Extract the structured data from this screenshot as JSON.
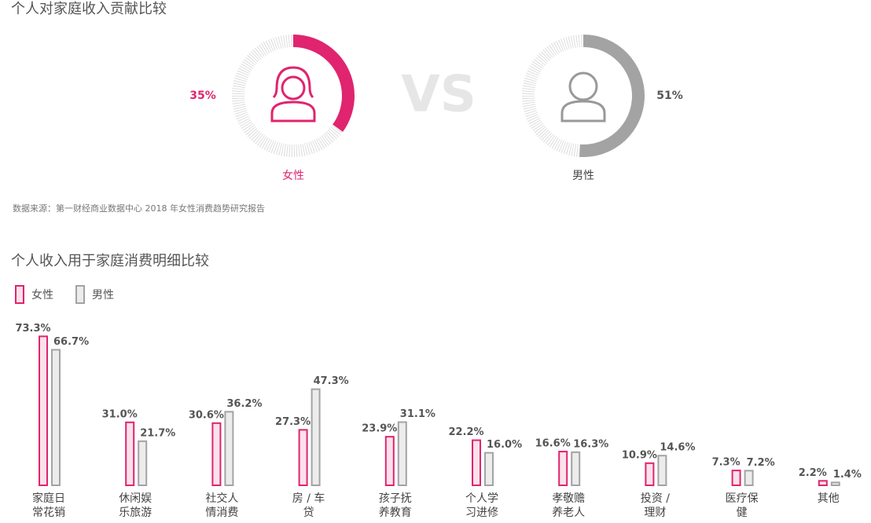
{
  "chart_data": [
    {
      "type": "donut-compare",
      "title": "个人对家庭收入贡献比较",
      "vs_label": "VS",
      "source": "数据来源：第一财经商业数据中心 2018 年女性消费趋势研究报告",
      "ylim": [
        0,
        100
      ],
      "series": [
        {
          "name": "女性",
          "color": "#e0246f",
          "values": [
            35
          ],
          "value_labels": [
            "35%"
          ]
        },
        {
          "name": "男性",
          "color": "#a3a3a3",
          "values": [
            51
          ],
          "value_labels": [
            "51%"
          ]
        }
      ]
    },
    {
      "type": "bar",
      "title": "个人收入用于家庭消费明细比较",
      "categories": [
        "家庭日常花销",
        "休闲娱乐旅游",
        "社交人情消费",
        "房 / 车贷",
        "孩子抚养教育",
        "个人学习进修",
        "孝敬赡养老人",
        "投资 / 理财",
        "医疗保健",
        "其他"
      ],
      "ylim": [
        0,
        80
      ],
      "series": [
        {
          "name": "女性",
          "color": "#e0246f",
          "values": [
            73.3,
            31.0,
            30.6,
            27.3,
            23.9,
            22.2,
            16.6,
            10.9,
            7.3,
            2.2
          ],
          "value_labels": [
            "73.3%",
            "31.0%",
            "30.6%",
            "27.3%",
            "23.9%",
            "22.2%",
            "16.6%",
            "10.9%",
            "7.3%",
            "2.2%"
          ]
        },
        {
          "name": "男性",
          "color": "#a3a3a3",
          "values": [
            66.7,
            21.7,
            36.2,
            47.3,
            31.1,
            16.0,
            16.3,
            14.6,
            7.2,
            1.4
          ],
          "value_labels": [
            "66.7%",
            "21.7%",
            "36.2%",
            "47.3%",
            "31.1%",
            "16.0%",
            "16.3%",
            "14.6%",
            "7.2%",
            "1.4%"
          ]
        }
      ]
    }
  ]
}
